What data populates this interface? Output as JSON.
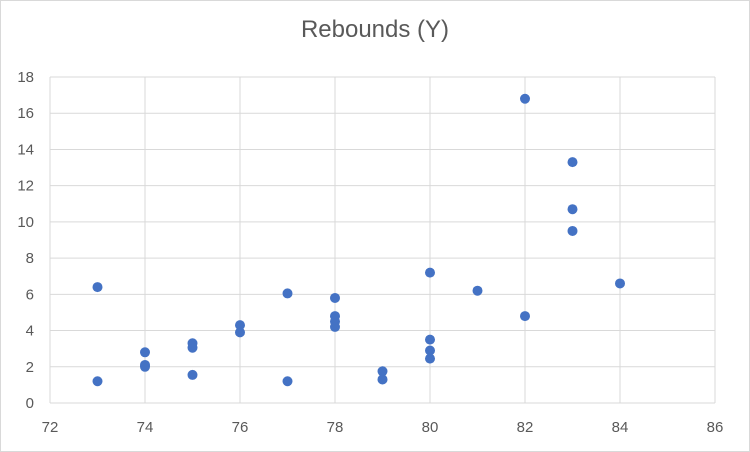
{
  "chart_data": {
    "type": "scatter",
    "title": "Rebounds (Y)",
    "xlabel": "",
    "ylabel": "",
    "xlim": [
      72,
      86
    ],
    "ylim": [
      0,
      18
    ],
    "x_ticks": [
      "72",
      "74",
      "76",
      "78",
      "80",
      "82",
      "84",
      "86"
    ],
    "y_ticks": [
      "0",
      "2",
      "4",
      "6",
      "8",
      "10",
      "12",
      "14",
      "16",
      "18"
    ],
    "grid": true,
    "legend": "none",
    "colors": {
      "marker": "#4472c4",
      "grid": "#d9d9d9",
      "text": "#595959"
    },
    "series": [
      {
        "x": [
          73,
          73,
          74,
          74,
          74,
          75,
          75,
          75,
          76,
          76,
          77,
          77,
          78,
          78,
          78,
          78,
          79,
          79,
          80,
          80,
          80,
          80,
          81,
          82,
          82,
          83,
          83,
          83,
          84
        ],
        "y": [
          6.4,
          1.2,
          2.8,
          2.1,
          2.0,
          3.3,
          3.05,
          1.55,
          4.3,
          3.9,
          6.05,
          1.2,
          5.8,
          4.8,
          4.5,
          4.2,
          1.75,
          1.3,
          7.2,
          3.5,
          2.9,
          2.45,
          6.2,
          16.8,
          4.8,
          13.3,
          10.7,
          9.5,
          6.6
        ]
      }
    ]
  }
}
